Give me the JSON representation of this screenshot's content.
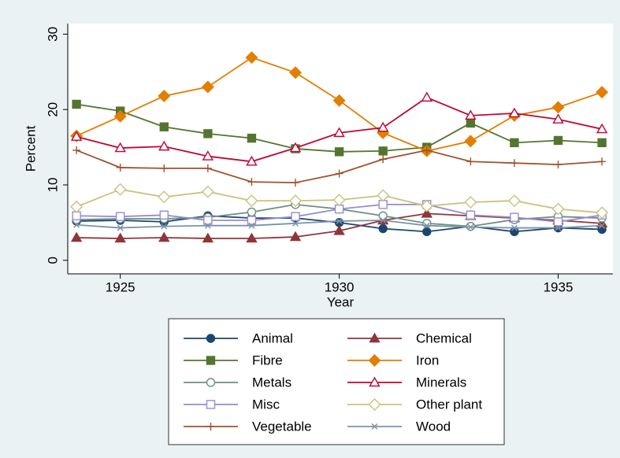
{
  "chart_data": {
    "type": "line",
    "x_label": "Year",
    "y_label": "Percent",
    "x": [
      1924,
      1925,
      1926,
      1927,
      1928,
      1929,
      1930,
      1931,
      1932,
      1933,
      1934,
      1935,
      1936
    ],
    "xlim": [
      1923.8,
      1936.25
    ],
    "xticks": [
      1925,
      1930,
      1935
    ],
    "ylim": [
      -1.8,
      31.4
    ],
    "yticks": [
      0,
      10,
      20,
      30
    ],
    "series": [
      {
        "name": "Animal",
        "color": "#1a476f",
        "marker": "circle-filled",
        "values": [
          5.2,
          5.3,
          5.1,
          5.9,
          5.6,
          5.6,
          5.0,
          4.2,
          3.8,
          4.5,
          3.8,
          4.3,
          4.1
        ]
      },
      {
        "name": "Chemical",
        "color": "#90353b",
        "marker": "triangle-filled",
        "values": [
          3.0,
          2.9,
          3.0,
          2.9,
          2.9,
          3.1,
          3.9,
          5.3,
          6.2,
          5.9,
          5.6,
          5.3,
          4.9
        ]
      },
      {
        "name": "Fibre",
        "color": "#55752f",
        "marker": "square-filled",
        "values": [
          20.7,
          19.8,
          17.7,
          16.8,
          16.2,
          14.8,
          14.4,
          14.5,
          15.0,
          18.2,
          15.6,
          15.9,
          15.6
        ]
      },
      {
        "name": "Iron",
        "color": "#e37e00",
        "marker": "diamond-filled",
        "values": [
          16.5,
          19.1,
          21.8,
          23.0,
          26.9,
          24.9,
          21.2,
          16.9,
          14.5,
          15.8,
          19.2,
          20.3,
          22.3
        ]
      },
      {
        "name": "Metals",
        "color": "#6e8e84",
        "marker": "circle-hollow",
        "values": [
          5.4,
          5.5,
          5.5,
          5.7,
          6.4,
          7.4,
          6.8,
          5.9,
          4.9,
          4.5,
          5.4,
          5.8,
          5.6
        ]
      },
      {
        "name": "Minerals",
        "color": "#c10534",
        "marker": "triangle-hollow",
        "values": [
          16.4,
          14.9,
          15.1,
          13.8,
          13.1,
          14.9,
          16.9,
          17.6,
          21.6,
          19.2,
          19.5,
          18.7,
          17.4
        ]
      },
      {
        "name": "Misc",
        "color": "#938dd2",
        "marker": "square-hollow",
        "values": [
          5.9,
          5.8,
          6.0,
          5.3,
          5.3,
          5.8,
          6.8,
          7.4,
          7.4,
          6.0,
          5.7,
          5.1,
          6.0
        ]
      },
      {
        "name": "Other plant",
        "color": "#cac27e",
        "marker": "diamond-hollow",
        "values": [
          7.1,
          9.4,
          8.4,
          9.1,
          7.9,
          7.9,
          8.0,
          8.6,
          7.2,
          7.7,
          7.9,
          6.8,
          6.3
        ]
      },
      {
        "name": "Vegetable",
        "color": "#a0522d",
        "marker": "plus",
        "values": [
          14.6,
          12.3,
          12.2,
          12.2,
          10.4,
          10.3,
          11.5,
          13.4,
          14.6,
          13.1,
          12.9,
          12.7,
          13.1
        ]
      },
      {
        "name": "Wood",
        "color": "#7b92a8",
        "marker": "x",
        "values": [
          4.7,
          4.3,
          4.5,
          4.6,
          4.6,
          4.9,
          5.2,
          5.3,
          4.6,
          4.4,
          4.3,
          4.3,
          4.6
        ]
      }
    ]
  }
}
